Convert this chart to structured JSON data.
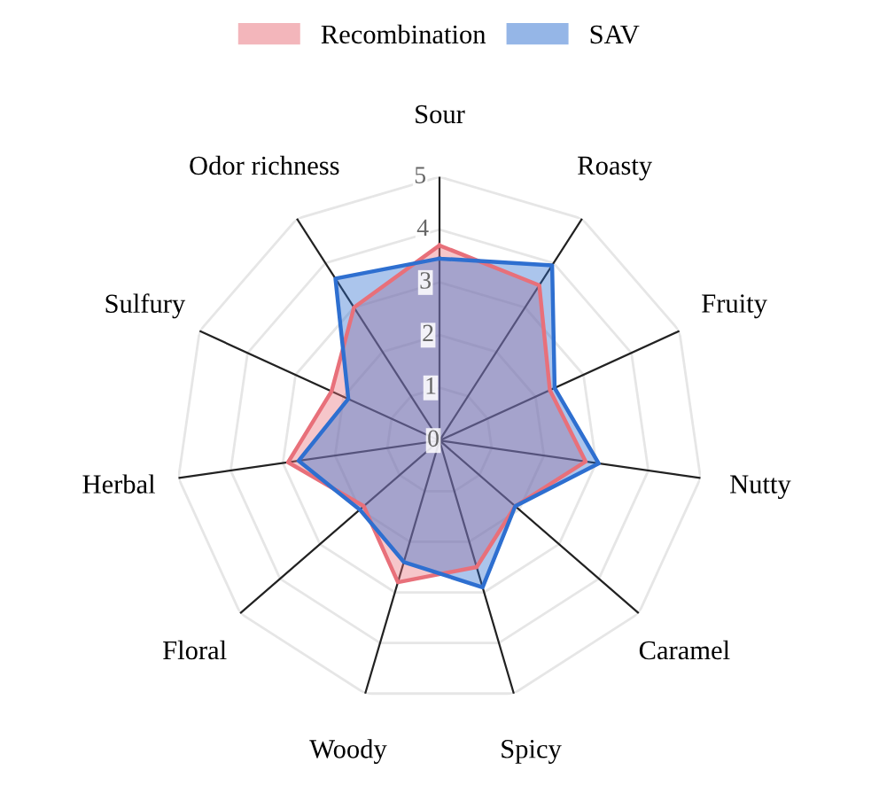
{
  "chart_data": {
    "type": "radar",
    "categories": [
      "Sour",
      "Roasty",
      "Fruity",
      "Nutty",
      "Caramel",
      "Spicy",
      "Woody",
      "Floral",
      "Herbal",
      "Sulfury",
      "Odor richness"
    ],
    "series": [
      {
        "name": "Recombination",
        "color": "#e8707a",
        "values": [
          3.7,
          3.5,
          2.3,
          2.8,
          1.9,
          2.5,
          2.8,
          1.9,
          2.9,
          2.25,
          3.0
        ]
      },
      {
        "name": "SAV",
        "color": "#2e6fd0",
        "values": [
          3.45,
          3.95,
          2.4,
          3.05,
          1.9,
          2.9,
          2.4,
          2.0,
          2.7,
          1.9,
          3.65
        ]
      }
    ],
    "ylim": [
      0,
      5
    ],
    "yticks": [
      0,
      1,
      2,
      3,
      4,
      5
    ],
    "grid": true,
    "legend": "top"
  }
}
